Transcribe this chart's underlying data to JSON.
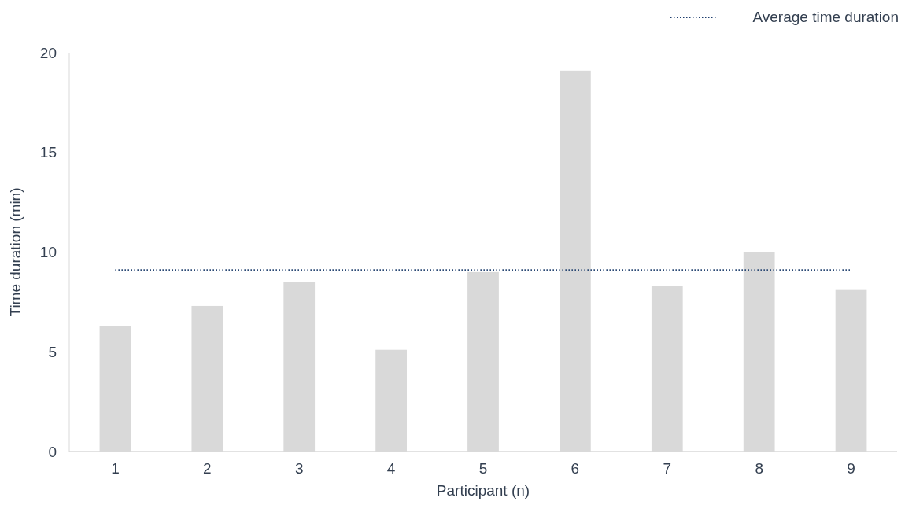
{
  "chart_data": {
    "type": "bar",
    "xlabel": "Participant (n)",
    "ylabel": "Time duration (min)",
    "categories": [
      "1",
      "2",
      "3",
      "4",
      "5",
      "6",
      "7",
      "8",
      "9"
    ],
    "series": [
      {
        "color": "#d9d9d9",
        "values": [
          6.3,
          7.3,
          8.5,
          5.1,
          9.0,
          19.1,
          8.3,
          10.0,
          8.1
        ]
      },
      {
        "type": "line",
        "name": "Average time duration",
        "color": "#1f3f6e",
        "line_style": "dotted",
        "marker": "none",
        "values": [
          9.1,
          9.1,
          9.1,
          9.1,
          9.1,
          9.1,
          9.1,
          9.1,
          9.1
        ]
      }
    ],
    "ylim": [
      0,
      20
    ],
    "yticks": [
      0,
      5,
      10,
      15,
      20
    ],
    "grid": false,
    "legend": "top right"
  }
}
